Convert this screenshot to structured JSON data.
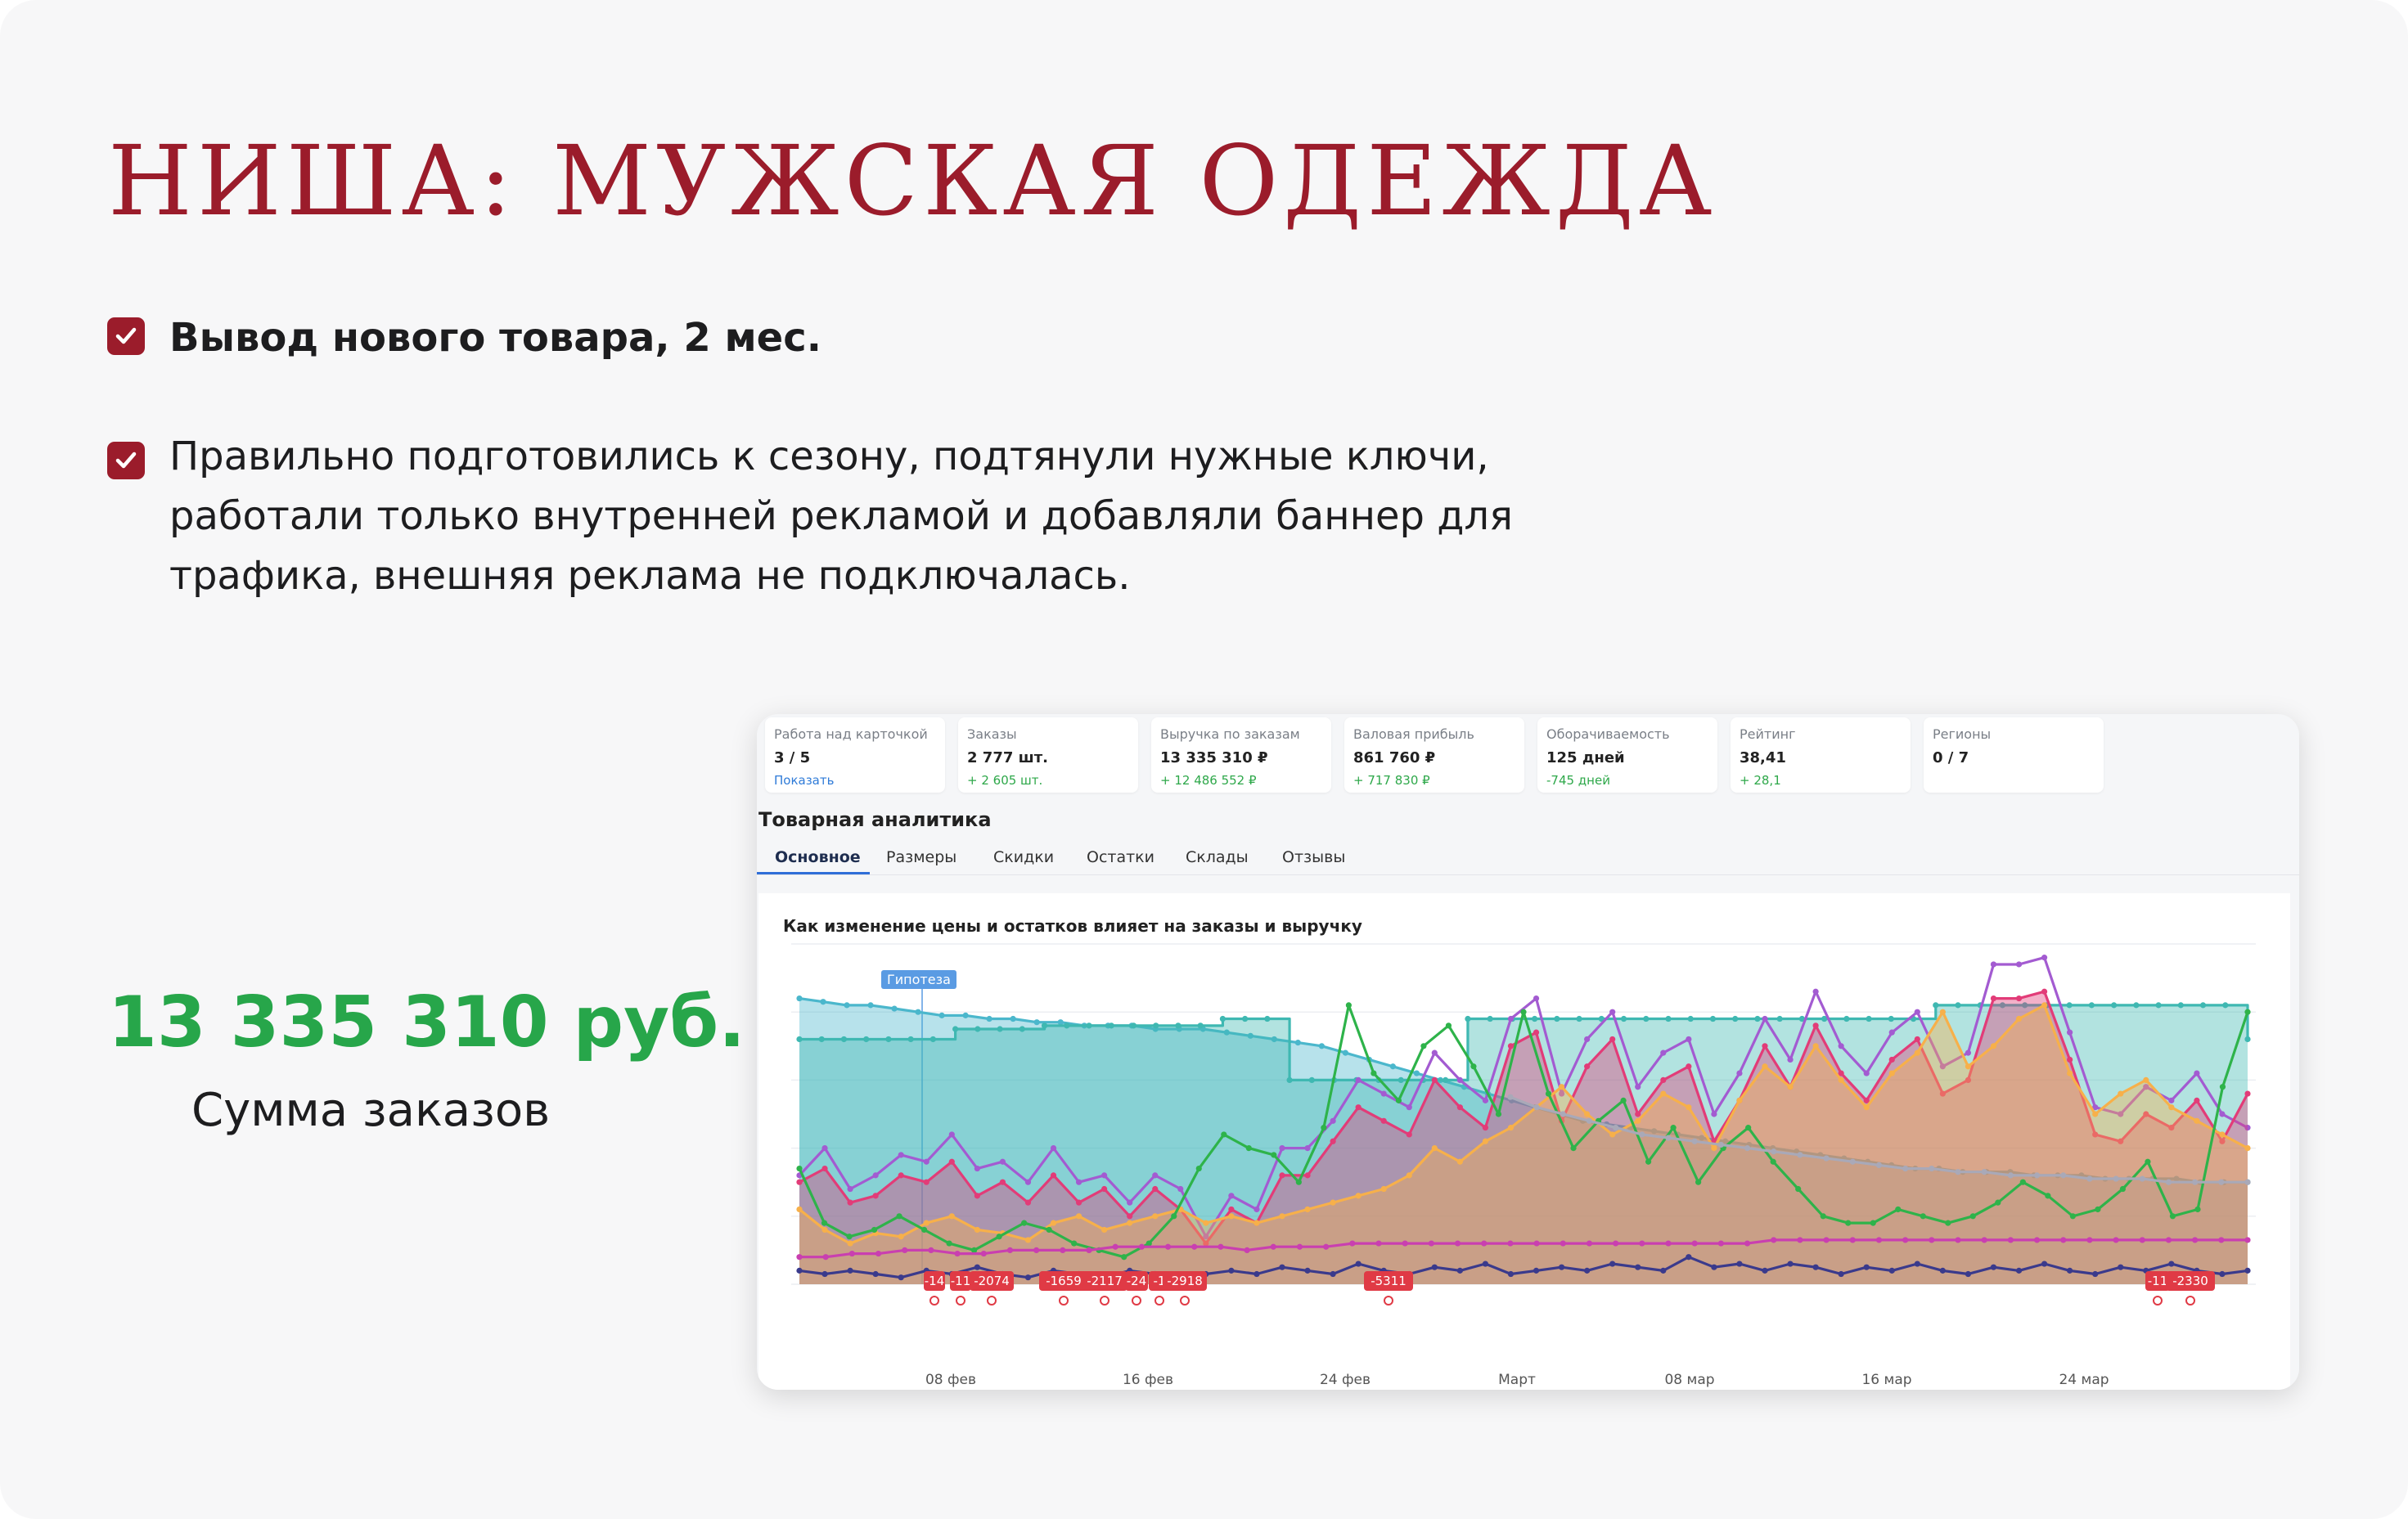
{
  "slide": {
    "title": "НИША: МУЖСКАЯ ОДЕЖДА",
    "bullets": [
      "Вывод нового товара, 2 мес.",
      "Правильно подготовились к сезону, подтянули нужные ключи, работали только внутренней рекламой и добавляли баннер для трафика, внешняя реклама не подключалась."
    ],
    "sum_value": "13 335 310 руб.",
    "sum_caption": "Сумма заказов",
    "colors": {
      "accent": "#9b1c2b",
      "sum_green": "#27a64a"
    }
  },
  "screenshot": {
    "metric_cards": [
      {
        "label": "Работа над карточкой",
        "value": "3 / 5",
        "delta": "Показать",
        "delta_is_link": true
      },
      {
        "label": "Заказы",
        "value": "2 777 шт.",
        "delta": "+ 2 605 шт.",
        "delta_is_link": false
      },
      {
        "label": "Выручка по заказам",
        "value": "13 335 310 ₽",
        "delta": "+ 12 486 552 ₽",
        "delta_is_link": false
      },
      {
        "label": "Валовая прибыль",
        "value": "861 760 ₽",
        "delta": "+ 717 830 ₽",
        "delta_is_link": false
      },
      {
        "label": "Оборачиваемость",
        "value": "125 дней",
        "delta": "-745 дней",
        "delta_is_link": false
      },
      {
        "label": "Рейтинг",
        "value": "38,41",
        "delta": "+ 28,1",
        "delta_is_link": false
      },
      {
        "label": "Регионы",
        "value": "0 / 7",
        "delta": "",
        "delta_is_link": false
      }
    ],
    "analytics_title": "Товарная аналитика",
    "tabs": [
      "Основное",
      "Размеры",
      "Скидки",
      "Остатки",
      "Склады",
      "Отзывы"
    ],
    "active_tab": "Основное",
    "chart_title": "Как изменение цены и остатков влияет на заказы и выручку",
    "hypothesis_label": "Гипотеза",
    "x_tick_labels": [
      "08 фев",
      "16 фев",
      "24 фев",
      "Март",
      "08 мар",
      "16 мар",
      "24 мар"
    ],
    "marker_labels": [
      "-14",
      "-11",
      "-2074",
      "-1659",
      "-2117",
      "-24",
      "-1",
      "-2918",
      "-5311",
      "-11",
      "-2330"
    ]
  },
  "chart_data": {
    "type": "line",
    "title": "Как изменение цены и остатков влияет на заказы и выручку",
    "x_tick_labels": [
      "08 фев",
      "16 фев",
      "24 фев",
      "Март",
      "08 мар",
      "16 мар",
      "24 мар"
    ],
    "grid": true,
    "y_axis_labels_shown": false,
    "series": [
      {
        "color": "#4bb7cc",
        "style": "area",
        "values": [
          84,
          83,
          82,
          82,
          81,
          80,
          79,
          79,
          78,
          78,
          77,
          77,
          76,
          76,
          76,
          75,
          75,
          75,
          74,
          73,
          72,
          71,
          70,
          68,
          66,
          64,
          62,
          60,
          58,
          56,
          54,
          52,
          50,
          48,
          47,
          46,
          45,
          44,
          43,
          42,
          41,
          40,
          39,
          38,
          37,
          36,
          35,
          34,
          34,
          33,
          33,
          33,
          32,
          32,
          32,
          31,
          31,
          31,
          31,
          30,
          30,
          30
        ]
      },
      {
        "color": "#3fb8b2",
        "style": "area-step",
        "values": [
          72,
          72,
          72,
          72,
          72,
          72,
          72,
          75,
          75,
          75,
          75,
          76,
          76,
          76,
          76,
          76,
          76,
          76,
          76,
          78,
          78,
          78,
          60,
          60,
          60,
          60,
          60,
          60,
          60,
          60,
          78,
          78,
          78,
          78,
          78,
          78,
          78,
          78,
          78,
          78,
          78,
          78,
          78,
          78,
          78,
          78,
          78,
          78,
          78,
          78,
          78,
          82,
          82,
          82,
          82,
          82,
          82,
          82,
          82,
          82,
          82,
          82,
          82,
          82,
          82,
          72
        ]
      },
      {
        "color": "#a35bd1",
        "style": "line",
        "values": [
          32,
          40,
          28,
          32,
          38,
          36,
          44,
          34,
          36,
          30,
          40,
          30,
          32,
          24,
          32,
          28,
          14,
          26,
          22,
          40,
          40,
          48,
          60,
          56,
          52,
          68,
          60,
          54,
          78,
          84,
          56,
          72,
          80,
          58,
          68,
          72,
          50,
          62,
          78,
          66,
          86,
          70,
          62,
          74,
          80,
          64,
          68,
          94,
          94,
          96,
          74,
          52,
          50,
          58,
          54,
          62,
          50,
          46
        ]
      },
      {
        "color": "#e23c78",
        "style": "area",
        "values": [
          30,
          34,
          24,
          26,
          32,
          30,
          36,
          26,
          30,
          24,
          32,
          24,
          28,
          20,
          28,
          22,
          12,
          22,
          18,
          32,
          32,
          42,
          52,
          48,
          44,
          60,
          52,
          46,
          70,
          74,
          48,
          64,
          72,
          50,
          60,
          64,
          42,
          54,
          70,
          58,
          76,
          62,
          54,
          66,
          72,
          56,
          60,
          84,
          84,
          86,
          66,
          44,
          42,
          50,
          46,
          54,
          42,
          56
        ]
      },
      {
        "color": "#f7b04a",
        "style": "area",
        "values": [
          22,
          16,
          12,
          15,
          14,
          18,
          20,
          16,
          15,
          13,
          18,
          20,
          16,
          18,
          20,
          22,
          18,
          20,
          18,
          20,
          22,
          24,
          26,
          28,
          32,
          40,
          36,
          42,
          46,
          52,
          58,
          50,
          44,
          48,
          56,
          52,
          40,
          54,
          64,
          58,
          70,
          60,
          52,
          62,
          68,
          80,
          64,
          70,
          78,
          82,
          62,
          50,
          56,
          60,
          52,
          48,
          44,
          40
        ]
      },
      {
        "color": "#2eb34a",
        "style": "line",
        "values": [
          34,
          18,
          14,
          16,
          20,
          16,
          12,
          10,
          14,
          18,
          16,
          12,
          10,
          8,
          12,
          20,
          34,
          44,
          40,
          38,
          30,
          46,
          82,
          62,
          54,
          70,
          76,
          64,
          50,
          80,
          56,
          40,
          48,
          54,
          36,
          46,
          30,
          40,
          46,
          36,
          28,
          20,
          18,
          18,
          22,
          20,
          18,
          20,
          24,
          30,
          26,
          20,
          22,
          28,
          36,
          20,
          22,
          58,
          80
        ]
      },
      {
        "color": "#c93fb0",
        "style": "line",
        "values": [
          8,
          8,
          9,
          9,
          10,
          10,
          9,
          9,
          10,
          10,
          10,
          10,
          11,
          11,
          11,
          11,
          11,
          10,
          11,
          11,
          11,
          12,
          12,
          12,
          12,
          12,
          12,
          12,
          12,
          12,
          12,
          12,
          12,
          12,
          12,
          12,
          12,
          13,
          13,
          13,
          13,
          13,
          13,
          13,
          13,
          13,
          13,
          13,
          13,
          13,
          13,
          13,
          13,
          13,
          13,
          13
        ]
      },
      {
        "color": "#3a3a8c",
        "style": "line",
        "values": [
          4,
          3,
          4,
          3,
          2,
          4,
          3,
          5,
          3,
          2,
          4,
          3,
          2,
          4,
          3,
          2,
          3,
          4,
          3,
          5,
          4,
          3,
          6,
          4,
          3,
          5,
          4,
          6,
          3,
          4,
          5,
          4,
          6,
          5,
          4,
          8,
          5,
          6,
          4,
          6,
          5,
          3,
          5,
          4,
          6,
          4,
          3,
          5,
          4,
          6,
          4,
          3,
          5,
          4,
          6,
          4,
          3,
          4
        ]
      },
      {
        "color": "#a9a9b8",
        "style": "line",
        "values": [
          0,
          0,
          0,
          0,
          0,
          0,
          0,
          0,
          0,
          0,
          0,
          0,
          0,
          0,
          0,
          0,
          0,
          0,
          0,
          0,
          0,
          0,
          0,
          0,
          0,
          0,
          0,
          55,
          52,
          50,
          48,
          46,
          44,
          43,
          42,
          41,
          40,
          39,
          38,
          37,
          36,
          35,
          34,
          34,
          33,
          33,
          32,
          32,
          32,
          31,
          31,
          31,
          30,
          30,
          30,
          30
        ]
      }
    ]
  }
}
